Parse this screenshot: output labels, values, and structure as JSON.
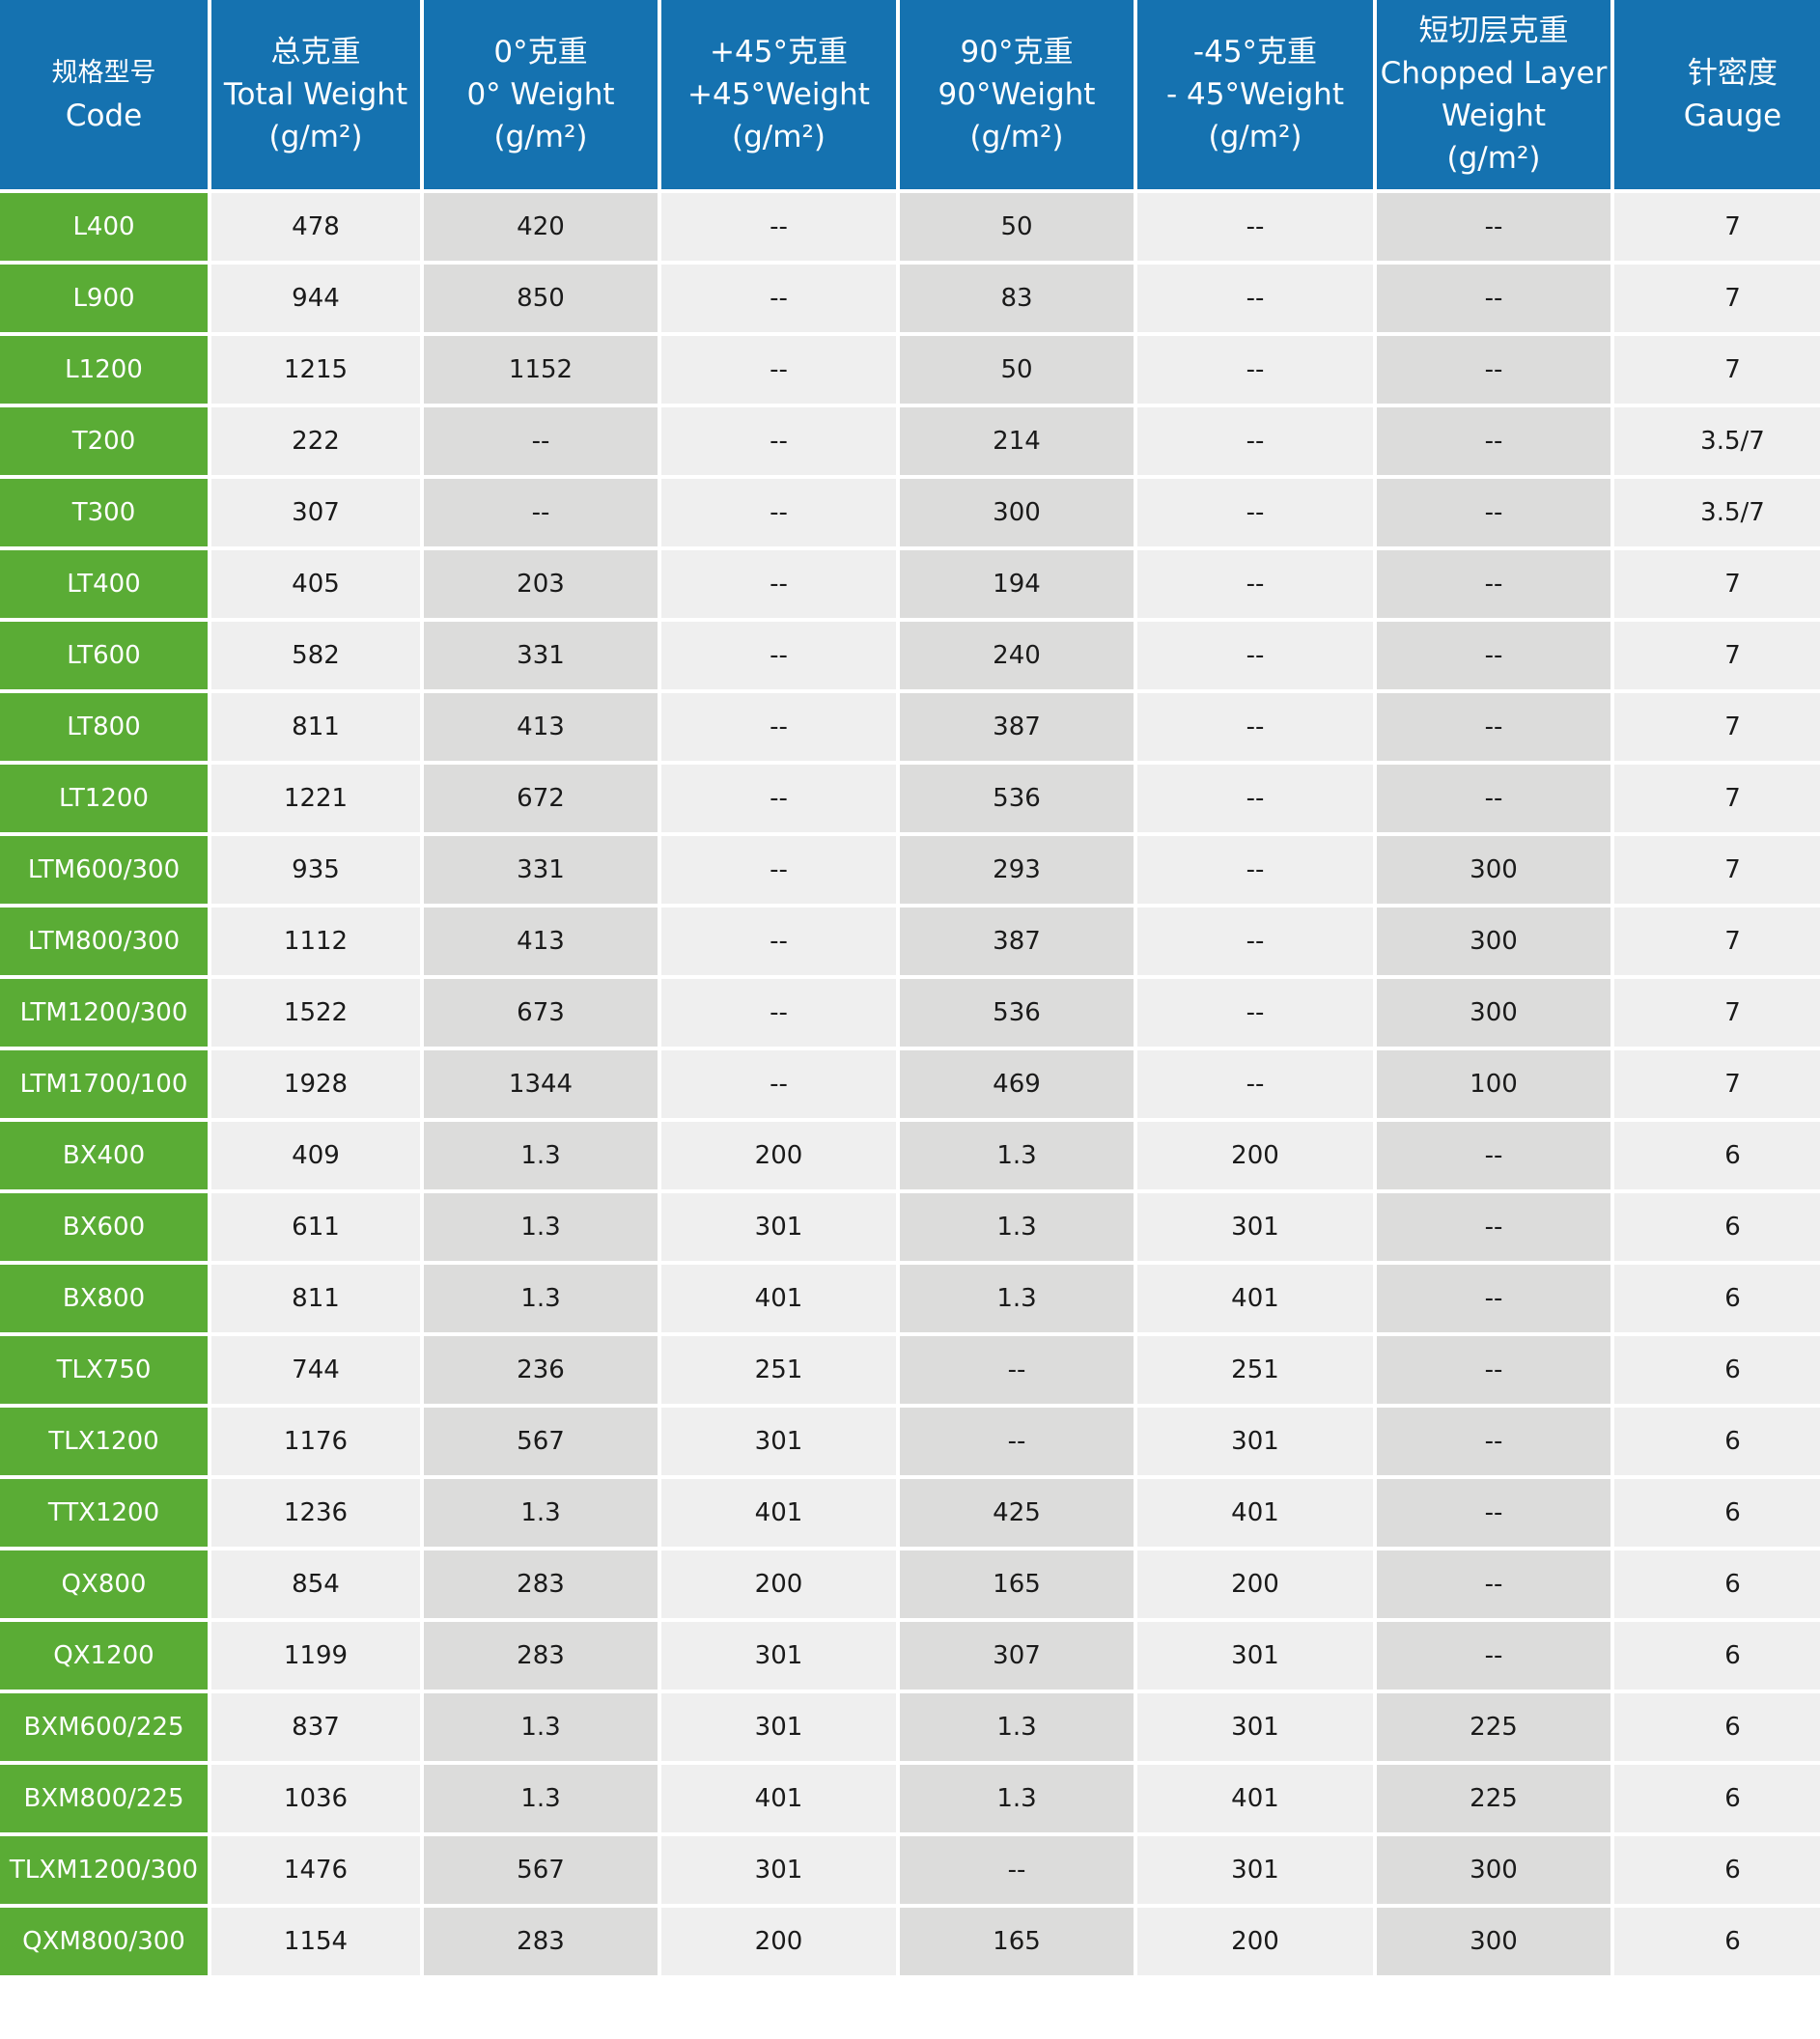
{
  "colors": {
    "header": "#1572b0",
    "code_column": "#5aac35",
    "cell_light": "#efefef",
    "cell_dark": "#dcdcdb"
  },
  "headers": [
    {
      "cn": "规格型号",
      "en": "Code",
      "unit": ""
    },
    {
      "cn": "总克重",
      "en": "Total Weight",
      "unit": "(g/m²)"
    },
    {
      "cn": "0°克重",
      "en": "0° Weight",
      "unit": "(g/m²)"
    },
    {
      "cn": "+45°克重",
      "en": "+45°Weight",
      "unit": "(g/m²)"
    },
    {
      "cn": "90°克重",
      "en": "90°Weight",
      "unit": "(g/m²)"
    },
    {
      "cn": "-45°克重",
      "en": "- 45°Weight",
      "unit": "(g/m²)"
    },
    {
      "cn": "短切层克重",
      "en": "Chopped Layer Weight",
      "unit": "(g/m²)"
    },
    {
      "cn": "针密度",
      "en": "Gauge",
      "unit": ""
    }
  ],
  "rows": [
    [
      "L400",
      "478",
      "420",
      "--",
      "50",
      "--",
      "--",
      "7"
    ],
    [
      "L900",
      "944",
      "850",
      "--",
      "83",
      "--",
      "--",
      "7"
    ],
    [
      "L1200",
      "1215",
      "1152",
      "--",
      "50",
      "--",
      "--",
      "7"
    ],
    [
      "T200",
      "222",
      "--",
      "--",
      "214",
      "--",
      "--",
      "3.5/7"
    ],
    [
      "T300",
      "307",
      "--",
      "--",
      "300",
      "--",
      "--",
      "3.5/7"
    ],
    [
      "LT400",
      "405",
      "203",
      "--",
      "194",
      "--",
      "--",
      "7"
    ],
    [
      "LT600",
      "582",
      "331",
      "--",
      "240",
      "--",
      "--",
      "7"
    ],
    [
      "LT800",
      "811",
      "413",
      "--",
      "387",
      "--",
      "--",
      "7"
    ],
    [
      "LT1200",
      "1221",
      "672",
      "--",
      "536",
      "--",
      "--",
      "7"
    ],
    [
      "LTM600/300",
      "935",
      "331",
      "--",
      "293",
      "--",
      "300",
      "7"
    ],
    [
      "LTM800/300",
      "1112",
      "413",
      "--",
      "387",
      "--",
      "300",
      "7"
    ],
    [
      "LTM1200/300",
      "1522",
      "673",
      "--",
      "536",
      "--",
      "300",
      "7"
    ],
    [
      "LTM1700/100",
      "1928",
      "1344",
      "--",
      "469",
      "--",
      "100",
      "7"
    ],
    [
      "BX400",
      "409",
      "1.3",
      "200",
      "1.3",
      "200",
      "--",
      "6"
    ],
    [
      "BX600",
      "611",
      "1.3",
      "301",
      "1.3",
      "301",
      "--",
      "6"
    ],
    [
      "BX800",
      "811",
      "1.3",
      "401",
      "1.3",
      "401",
      "--",
      "6"
    ],
    [
      "TLX750",
      "744",
      "236",
      "251",
      "--",
      "251",
      "--",
      "6"
    ],
    [
      "TLX1200",
      "1176",
      "567",
      "301",
      "--",
      "301",
      "--",
      "6"
    ],
    [
      "TTX1200",
      "1236",
      "1.3",
      "401",
      "425",
      "401",
      "--",
      "6"
    ],
    [
      "QX800",
      "854",
      "283",
      "200",
      "165",
      "200",
      "--",
      "6"
    ],
    [
      "QX1200",
      "1199",
      "283",
      "301",
      "307",
      "301",
      "--",
      "6"
    ],
    [
      "BXM600/225",
      "837",
      "1.3",
      "301",
      "1.3",
      "301",
      "225",
      "6"
    ],
    [
      "BXM800/225",
      "1036",
      "1.3",
      "401",
      "1.3",
      "401",
      "225",
      "6"
    ],
    [
      "TLXM1200/300",
      "1476",
      "567",
      "301",
      "--",
      "301",
      "300",
      "6"
    ],
    [
      "QXM800/300",
      "1154",
      "283",
      "200",
      "165",
      "200",
      "300",
      "6"
    ]
  ]
}
